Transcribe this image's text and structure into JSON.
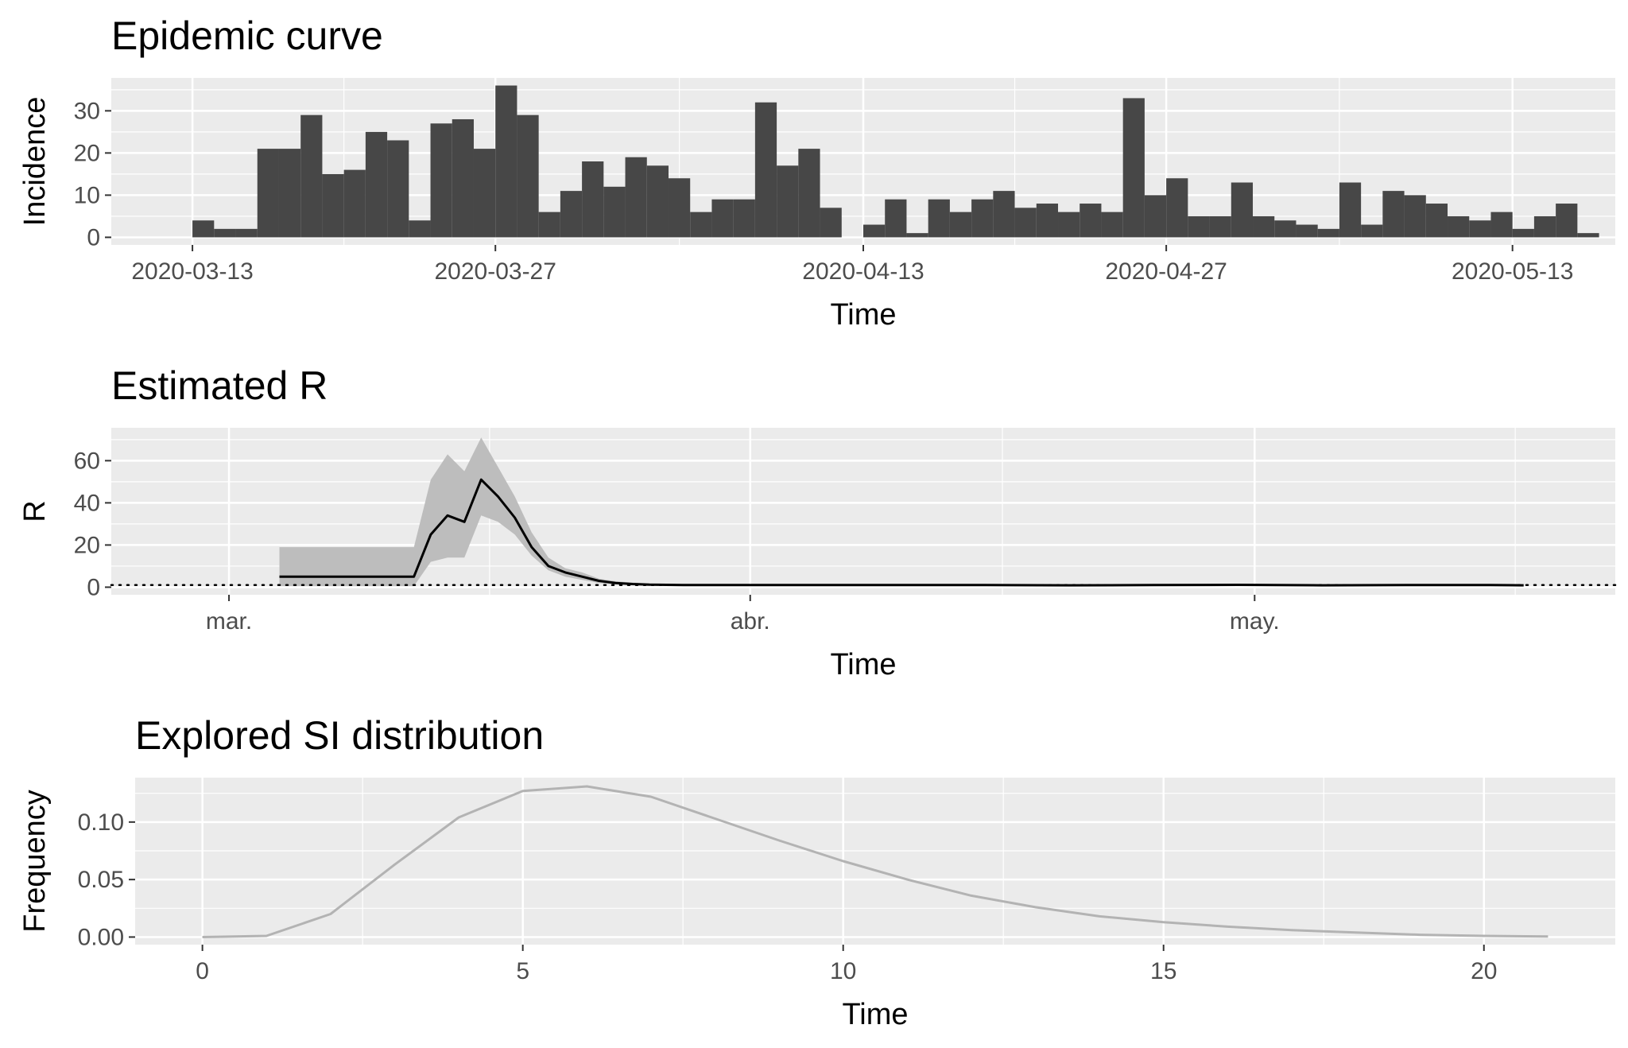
{
  "chart_data": [
    {
      "type": "bar",
      "title": "Epidemic curve",
      "xlabel": "Time",
      "ylabel": "Incidence",
      "x_tick_labels": [
        "2020-03-13",
        "2020-03-27",
        "2020-04-13",
        "2020-04-27",
        "2020-05-13"
      ],
      "y_ticks": [
        0,
        10,
        20,
        30
      ],
      "ylim": [
        -1.8,
        37.8
      ],
      "start_date": "2020-03-13",
      "x": [
        "2020-03-13",
        "2020-03-14",
        "2020-03-15",
        "2020-03-16",
        "2020-03-17",
        "2020-03-18",
        "2020-03-19",
        "2020-03-20",
        "2020-03-21",
        "2020-03-22",
        "2020-03-23",
        "2020-03-24",
        "2020-03-25",
        "2020-03-26",
        "2020-03-27",
        "2020-03-28",
        "2020-03-29",
        "2020-03-30",
        "2020-03-31",
        "2020-04-01",
        "2020-04-02",
        "2020-04-03",
        "2020-04-04",
        "2020-04-05",
        "2020-04-06",
        "2020-04-07",
        "2020-04-08",
        "2020-04-09",
        "2020-04-10",
        "2020-04-11",
        "2020-04-12",
        "2020-04-13",
        "2020-04-14",
        "2020-04-15",
        "2020-04-16",
        "2020-04-17",
        "2020-04-18",
        "2020-04-19",
        "2020-04-20",
        "2020-04-21",
        "2020-04-22",
        "2020-04-23",
        "2020-04-24",
        "2020-04-25",
        "2020-04-26",
        "2020-04-27",
        "2020-04-28",
        "2020-04-29",
        "2020-04-30",
        "2020-05-01",
        "2020-05-02",
        "2020-05-03",
        "2020-05-04",
        "2020-05-05",
        "2020-05-06",
        "2020-05-07",
        "2020-05-08",
        "2020-05-09",
        "2020-05-10",
        "2020-05-11",
        "2020-05-12",
        "2020-05-13",
        "2020-05-14",
        "2020-05-15",
        "2020-05-16",
        "2020-05-17"
      ],
      "values": [
        4,
        2,
        2,
        21,
        21,
        29,
        15,
        16,
        25,
        23,
        4,
        27,
        28,
        21,
        36,
        29,
        6,
        11,
        18,
        12,
        19,
        17,
        14,
        6,
        9,
        9,
        32,
        17,
        21,
        7,
        0,
        3,
        9,
        1,
        9,
        6,
        9,
        11,
        7,
        8,
        6,
        8,
        6,
        33,
        10,
        14,
        5,
        5,
        13,
        5,
        4,
        3,
        2,
        13,
        3,
        11,
        10,
        8,
        5,
        4,
        6,
        2,
        5,
        8,
        1,
        0
      ],
      "colors": {
        "bar": "#474747",
        "panel": "#ebebeb",
        "grid": "#ffffff"
      }
    },
    {
      "type": "line",
      "title": "Estimated R",
      "xlabel": "Time",
      "ylabel": "R",
      "x_tick_labels": [
        "mar.",
        "abr.",
        "may."
      ],
      "x_tick_dates": [
        "2020-03-01",
        "2020-04-01",
        "2020-05-01"
      ],
      "y_ticks": [
        0,
        20,
        40,
        60
      ],
      "ylim": [
        -3.6,
        75.6
      ],
      "reference_line": {
        "y": 1,
        "style": "dotted"
      },
      "series": [
        {
          "x": [
            "2020-03-04",
            "2020-03-05",
            "2020-03-06",
            "2020-03-07",
            "2020-03-08",
            "2020-03-09",
            "2020-03-10",
            "2020-03-11",
            "2020-03-12",
            "2020-03-13",
            "2020-03-14",
            "2020-03-15",
            "2020-03-16",
            "2020-03-17",
            "2020-03-18",
            "2020-03-19",
            "2020-03-20",
            "2020-03-21",
            "2020-03-22",
            "2020-03-23",
            "2020-03-24",
            "2020-03-25",
            "2020-03-26",
            "2020-03-27",
            "2020-03-28",
            "2020-03-29",
            "2020-03-30",
            "2020-04-01",
            "2020-04-05",
            "2020-04-10",
            "2020-04-15",
            "2020-04-20",
            "2020-04-25",
            "2020-04-30",
            "2020-05-05",
            "2020-05-10",
            "2020-05-15",
            "2020-05-17"
          ],
          "values": [
            5,
            5,
            5,
            5,
            5,
            5,
            5,
            5,
            5,
            25,
            34,
            31,
            51,
            43,
            33,
            19,
            10,
            7,
            5,
            3,
            2,
            1.5,
            1.2,
            1.1,
            1.0,
            1.0,
            1.0,
            1.0,
            1.0,
            1.0,
            1.0,
            0.9,
            1.0,
            1.1,
            0.9,
            1.0,
            1.0,
            0.9
          ],
          "lower": [
            0.5,
            0.5,
            0.5,
            0.5,
            0.5,
            0.5,
            0.5,
            0.5,
            0.5,
            12,
            14,
            14,
            34,
            31,
            25,
            15,
            8,
            5,
            3.5,
            2,
            1.3,
            1.0,
            0.8,
            0.8,
            0.7,
            0.7,
            0.7,
            0.7,
            0.7,
            0.7,
            0.7,
            0.6,
            0.7,
            0.8,
            0.6,
            0.7,
            0.7,
            0.6
          ],
          "upper": [
            19,
            19,
            19,
            19,
            19,
            19,
            19,
            19,
            19,
            51,
            63,
            55,
            71,
            57,
            43,
            26,
            14,
            9,
            7,
            4,
            2.8,
            2.2,
            1.8,
            1.6,
            1.4,
            1.4,
            1.4,
            1.4,
            1.4,
            1.4,
            1.4,
            1.3,
            1.4,
            1.5,
            1.3,
            1.4,
            1.4,
            1.3
          ]
        }
      ],
      "colors": {
        "line": "#000000",
        "ribbon": "#bdbdbd",
        "panel": "#ebebeb",
        "grid": "#ffffff"
      }
    },
    {
      "type": "line",
      "title": "Explored SI distribution",
      "xlabel": "Time",
      "ylabel": "Frequency",
      "x_ticks": [
        0,
        5,
        10,
        15,
        20
      ],
      "y_ticks": [
        0.0,
        0.05,
        0.1
      ],
      "y_tick_labels": [
        "0.00",
        "0.05",
        "0.10"
      ],
      "xlim": [
        -1.05,
        22.05
      ],
      "ylim": [
        -0.0066,
        0.1386
      ],
      "series": [
        {
          "x": [
            0,
            1,
            2,
            3,
            4,
            5,
            6,
            7,
            8,
            9,
            10,
            11,
            12,
            13,
            14,
            15,
            16,
            17,
            18,
            19,
            20,
            21
          ],
          "values": [
            0,
            0.001,
            0.02,
            0.063,
            0.104,
            0.127,
            0.131,
            0.122,
            0.103,
            0.084,
            0.066,
            0.05,
            0.036,
            0.026,
            0.018,
            0.013,
            0.009,
            0.006,
            0.004,
            0.002,
            0.001,
            0.0005
          ]
        }
      ],
      "colors": {
        "line": "#b3b3b3",
        "panel": "#ebebeb",
        "grid": "#ffffff"
      }
    }
  ]
}
